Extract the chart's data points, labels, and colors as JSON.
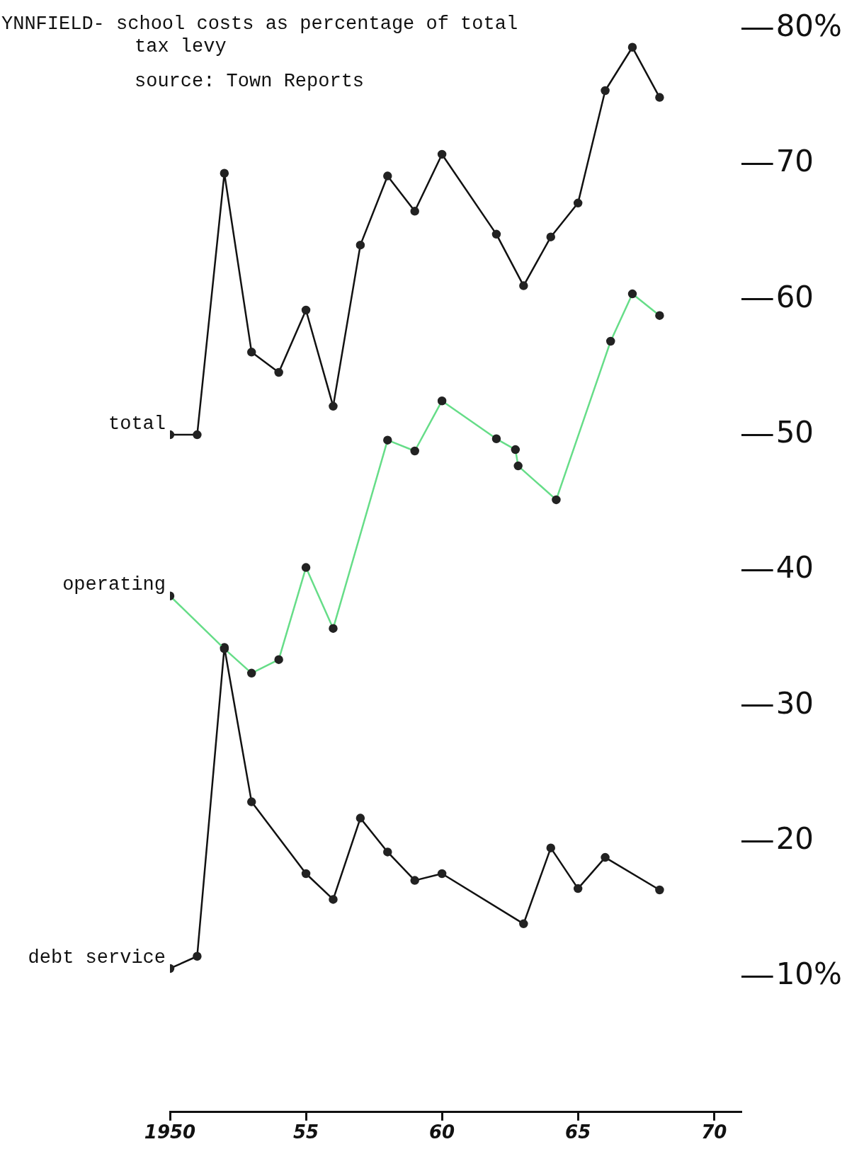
{
  "chart_data": {
    "type": "line",
    "title": "YNNFIELD- school costs as percentage of total tax levy",
    "annotations": [
      "source: Town Reports"
    ],
    "xlim": [
      1950,
      1971
    ],
    "xticks": [
      {
        "value": 1950,
        "label": "1950"
      },
      {
        "value": 1955,
        "label": "55"
      },
      {
        "value": 1960,
        "label": "60"
      },
      {
        "value": 1965,
        "label": "65"
      },
      {
        "value": 1970,
        "label": "70"
      }
    ],
    "ylim": [
      0,
      80
    ],
    "yticks": [
      {
        "value": 10,
        "label": "10%"
      },
      20,
      30,
      40,
      50,
      60,
      70,
      {
        "value": 80,
        "label": "80%"
      }
    ],
    "marker": "circle",
    "series": [
      {
        "name": "total",
        "color": "#111111",
        "x": [
          1950,
          1951,
          1952,
          1953,
          1954,
          1955,
          1956,
          1957,
          1958,
          1959,
          1960,
          1962,
          1963,
          1964,
          1965,
          1966,
          1967,
          1968
        ],
        "values": [
          50,
          50,
          69.3,
          56.1,
          54.6,
          59.2,
          52.1,
          64,
          69.1,
          66.5,
          70.7,
          64.8,
          61,
          64.6,
          67.1,
          75.4,
          78.6,
          74.9
        ]
      },
      {
        "name": "operating",
        "color": "#66dd88",
        "x": [
          1950,
          1952,
          1953,
          1954,
          1955,
          1956,
          1958,
          1959,
          1960,
          1962,
          1962.7,
          1962.8,
          1964.2,
          1966.2,
          1967,
          1968
        ],
        "values": [
          38.1,
          34.2,
          32.4,
          33.4,
          40.2,
          35.7,
          49.6,
          48.8,
          52.5,
          49.7,
          48.9,
          47.7,
          45.2,
          56.9,
          60.4,
          58.8
        ]
      },
      {
        "name": "debt service",
        "color": "#111111",
        "x": [
          1950,
          1951,
          1952,
          1953,
          1955,
          1956,
          1957,
          1958,
          1959,
          1960,
          1963,
          1964,
          1965,
          1966,
          1968
        ],
        "values": [
          10.6,
          11.5,
          34.3,
          22.9,
          17.6,
          15.7,
          21.7,
          19.2,
          17.1,
          17.6,
          13.9,
          19.5,
          16.5,
          18.8,
          16.4
        ]
      }
    ]
  }
}
